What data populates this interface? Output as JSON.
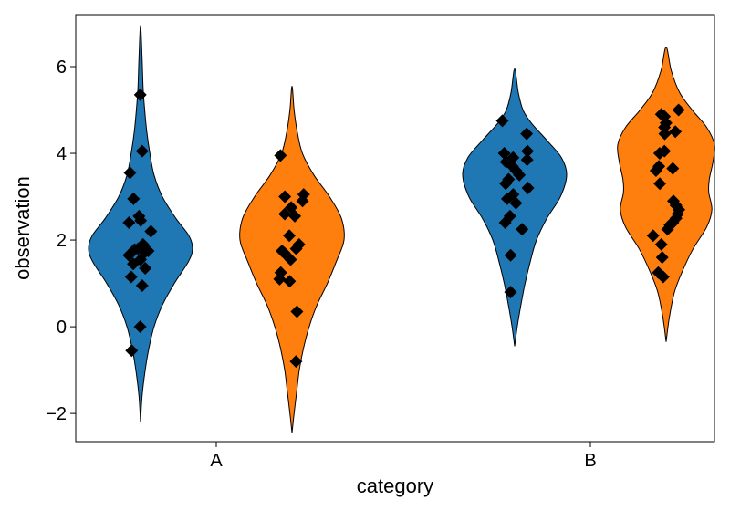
{
  "chart_data": {
    "type": "violin",
    "title": "",
    "xlabel": "category",
    "ylabel": "observation",
    "categories": [
      "A",
      "B"
    ],
    "ylim": [
      -2.65,
      7.2
    ],
    "yticks": [
      -2,
      0,
      2,
      4,
      6
    ],
    "ytick_labels": [
      "−2",
      "0",
      "2",
      "4",
      "6"
    ],
    "grid": false,
    "legend": "none",
    "marker": "diamond",
    "marker_color": "#000000",
    "series": [
      {
        "color": "#1f77b4",
        "groups": [
          {
            "category": "A",
            "range": [
              -2.2,
              6.95
            ],
            "density": [
              [
                -2.2,
                0.0
              ],
              [
                -1.6,
                0.03
              ],
              [
                -1.0,
                0.09
              ],
              [
                -0.5,
                0.16
              ],
              [
                0.0,
                0.26
              ],
              [
                0.5,
                0.42
              ],
              [
                1.0,
                0.65
              ],
              [
                1.5,
                0.92
              ],
              [
                1.8,
                1.0
              ],
              [
                2.1,
                0.93
              ],
              [
                2.5,
                0.68
              ],
              [
                3.0,
                0.42
              ],
              [
                3.5,
                0.26
              ],
              [
                4.0,
                0.18
              ],
              [
                4.5,
                0.12
              ],
              [
                5.0,
                0.08
              ],
              [
                5.5,
                0.05
              ],
              [
                6.2,
                0.03
              ],
              [
                6.95,
                0.0
              ]
            ],
            "points": [
              5.35,
              4.05,
              3.55,
              2.95,
              2.55,
              2.45,
              2.4,
              2.2,
              1.9,
              1.8,
              1.78,
              1.75,
              1.72,
              1.65,
              1.55,
              1.45,
              1.35,
              1.15,
              0.95,
              0.0,
              -0.55
            ]
          },
          {
            "category": "B",
            "range": [
              -0.45,
              5.95
            ],
            "density": [
              [
                -0.45,
                0.0
              ],
              [
                0.0,
                0.05
              ],
              [
                0.5,
                0.12
              ],
              [
                1.0,
                0.2
              ],
              [
                1.5,
                0.3
              ],
              [
                2.0,
                0.42
              ],
              [
                2.5,
                0.62
              ],
              [
                3.0,
                0.88
              ],
              [
                3.5,
                1.0
              ],
              [
                3.9,
                0.9
              ],
              [
                4.3,
                0.62
              ],
              [
                4.7,
                0.32
              ],
              [
                5.0,
                0.16
              ],
              [
                5.4,
                0.07
              ],
              [
                5.95,
                0.0
              ]
            ],
            "points": [
              4.75,
              4.45,
              4.05,
              4.0,
              3.9,
              3.85,
              3.8,
              3.7,
              3.6,
              3.5,
              3.4,
              3.3,
              3.2,
              3.05,
              2.95,
              2.85,
              2.55,
              2.4,
              2.25,
              1.65,
              0.8
            ]
          }
        ]
      },
      {
        "color": "#ff7f0e",
        "groups": [
          {
            "category": "A",
            "range": [
              -2.45,
              5.55
            ],
            "density": [
              [
                -2.45,
                0.0
              ],
              [
                -2.0,
                0.04
              ],
              [
                -1.5,
                0.09
              ],
              [
                -1.0,
                0.14
              ],
              [
                -0.5,
                0.22
              ],
              [
                0.0,
                0.33
              ],
              [
                0.5,
                0.48
              ],
              [
                1.0,
                0.68
              ],
              [
                1.5,
                0.85
              ],
              [
                2.0,
                1.0
              ],
              [
                2.5,
                0.95
              ],
              [
                3.0,
                0.72
              ],
              [
                3.5,
                0.42
              ],
              [
                4.0,
                0.2
              ],
              [
                4.5,
                0.1
              ],
              [
                5.0,
                0.04
              ],
              [
                5.55,
                0.0
              ]
            ],
            "points": [
              3.95,
              3.05,
              3.0,
              2.9,
              2.75,
              2.6,
              2.55,
              2.1,
              1.9,
              1.8,
              1.75,
              1.7,
              1.55,
              1.25,
              1.1,
              1.05,
              0.35,
              -0.8
            ]
          },
          {
            "category": "B",
            "range": [
              -0.35,
              6.45
            ],
            "density": [
              [
                -0.35,
                0.0
              ],
              [
                0.2,
                0.06
              ],
              [
                0.8,
                0.16
              ],
              [
                1.3,
                0.32
              ],
              [
                1.8,
                0.52
              ],
              [
                2.3,
                0.78
              ],
              [
                2.7,
                0.88
              ],
              [
                3.1,
                0.82
              ],
              [
                3.4,
                0.83
              ],
              [
                3.8,
                0.9
              ],
              [
                4.2,
                0.93
              ],
              [
                4.6,
                0.78
              ],
              [
                5.0,
                0.5
              ],
              [
                5.4,
                0.26
              ],
              [
                5.9,
                0.1
              ],
              [
                6.45,
                0.0
              ]
            ],
            "points": [
              5.0,
              4.9,
              4.85,
              4.7,
              4.6,
              4.5,
              4.45,
              4.05,
              4.0,
              3.7,
              3.65,
              3.6,
              3.3,
              2.9,
              2.8,
              2.7,
              2.6,
              2.5,
              2.4,
              2.35,
              2.25,
              2.1,
              1.9,
              1.6,
              1.25,
              1.15
            ]
          }
        ]
      }
    ]
  }
}
